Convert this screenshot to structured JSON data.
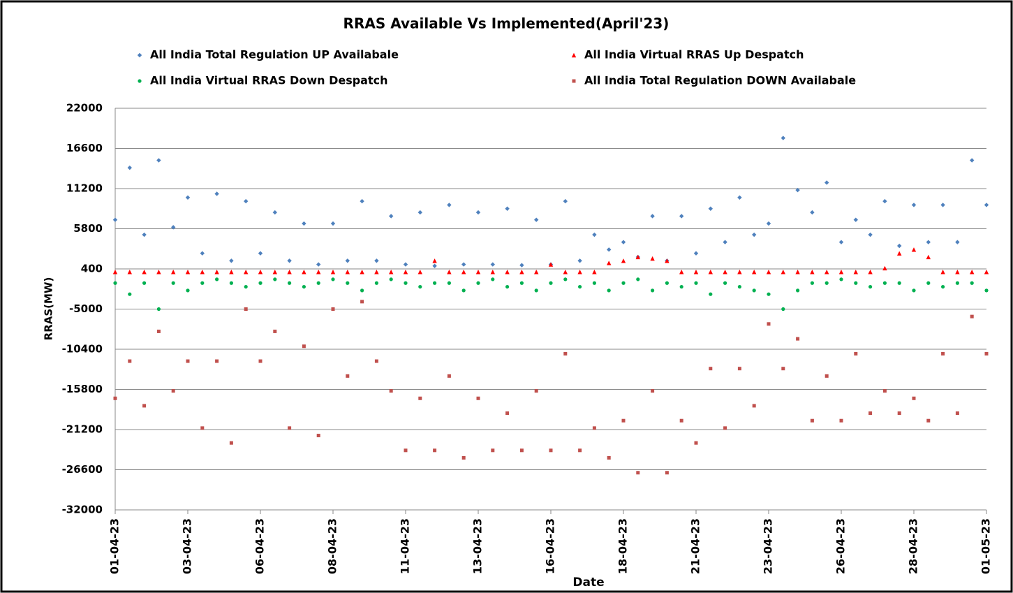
{
  "chart_data": {
    "type": "scatter",
    "title": "RRAS Available Vs Implemented(April'23)",
    "ylabel": "RRAS(MW)",
    "xlabel": "Date",
    "categories": [
      "01-04-23",
      null,
      null,
      null,
      null,
      "03-04-23",
      null,
      null,
      null,
      null,
      "06-04-23",
      null,
      null,
      null,
      null,
      "08-04-23",
      null,
      null,
      null,
      null,
      "11-04-23",
      null,
      null,
      null,
      null,
      "13-04-23",
      null,
      null,
      null,
      null,
      "16-04-23",
      null,
      null,
      null,
      null,
      "18-04-23",
      null,
      null,
      null,
      null,
      "21-04-23",
      null,
      null,
      null,
      null,
      "23-04-23",
      null,
      null,
      null,
      null,
      "26-04-23",
      null,
      null,
      null,
      null,
      "28-04-23",
      null,
      null,
      null,
      null,
      "01-05-23"
    ],
    "ylim": [
      -32000,
      22000
    ],
    "yticks": [
      -32000,
      -26600,
      -21200,
      -15800,
      -10400,
      -5000,
      400,
      5800,
      11200,
      16600,
      22000
    ],
    "grid": true,
    "series": [
      {
        "name": "All India Total Regulation UP Availabale",
        "color": "#4f81bd",
        "marker": "diamond",
        "values": [
          7000,
          14000,
          5000,
          15000,
          6000,
          10000,
          2500,
          10500,
          1500,
          9500,
          2500,
          8000,
          1500,
          6500,
          1000,
          6500,
          1500,
          9500,
          1500,
          7500,
          1000,
          8000,
          800,
          9000,
          1000,
          8000,
          1000,
          8500,
          900,
          7000,
          1000,
          9500,
          1500,
          5000,
          3000,
          4000,
          2000,
          7500,
          1500,
          7500,
          2500,
          8500,
          4000,
          10000,
          5000,
          6500,
          18000,
          11000,
          8000,
          12000,
          4000,
          7000,
          5000,
          9500,
          3500,
          9000,
          4000,
          9000,
          4000,
          15000,
          9000
        ]
      },
      {
        "name": "All India Virtual RRAS Up Despatch",
        "color": "#ff0000",
        "marker": "triangle",
        "values": [
          0,
          0,
          0,
          0,
          0,
          0,
          0,
          0,
          0,
          0,
          0,
          0,
          0,
          0,
          0,
          0,
          0,
          0,
          0,
          0,
          0,
          0,
          1500,
          0,
          0,
          0,
          0,
          0,
          0,
          0,
          1000,
          0,
          0,
          0,
          1200,
          1500,
          2000,
          1800,
          1500,
          0,
          0,
          0,
          0,
          0,
          0,
          0,
          0,
          0,
          0,
          0,
          0,
          0,
          0,
          500,
          2500,
          3000,
          2000,
          0,
          0,
          0,
          0
        ]
      },
      {
        "name": "All India Virtual RRAS Down Despatch",
        "color": "#00b050",
        "marker": "circle",
        "values": [
          -1500,
          -3000,
          -1500,
          -5000,
          -1500,
          -2500,
          -1500,
          -1000,
          -1500,
          -2000,
          -1500,
          -1000,
          -1500,
          -2000,
          -1500,
          -1000,
          -1500,
          -2500,
          -1500,
          -1000,
          -1500,
          -2000,
          -1500,
          -1500,
          -2500,
          -1500,
          -1000,
          -2000,
          -1500,
          -2500,
          -1500,
          -1000,
          -2000,
          -1500,
          -2500,
          -1500,
          -1000,
          -2500,
          -1500,
          -2000,
          -1500,
          -3000,
          -1500,
          -2000,
          -2500,
          -3000,
          -5000,
          -2500,
          -1500,
          -1500,
          -1000,
          -1500,
          -2000,
          -1500,
          -1500,
          -2500,
          -1500,
          -2000,
          -1500,
          -1500,
          -2500
        ]
      },
      {
        "name": "All India Total  Regulation DOWN Availabale",
        "color": "#c0504d",
        "marker": "square",
        "values": [
          -17000,
          -12000,
          -18000,
          -8000,
          -16000,
          -12000,
          -21000,
          -12000,
          -23000,
          -5000,
          -12000,
          -8000,
          -21000,
          -10000,
          -22000,
          -5000,
          -14000,
          -4000,
          -12000,
          -16000,
          -24000,
          -17000,
          -24000,
          -14000,
          -25000,
          -17000,
          -24000,
          -19000,
          -24000,
          -16000,
          -24000,
          -11000,
          -24000,
          -21000,
          -25000,
          -20000,
          -27000,
          -16000,
          -27000,
          -20000,
          -23000,
          -13000,
          -21000,
          -13000,
          -18000,
          -7000,
          -13000,
          -9000,
          -20000,
          -14000,
          -20000,
          -11000,
          -19000,
          -16000,
          -19000,
          -17000,
          -20000,
          -11000,
          -19000,
          -6000,
          -11000
        ]
      }
    ]
  }
}
